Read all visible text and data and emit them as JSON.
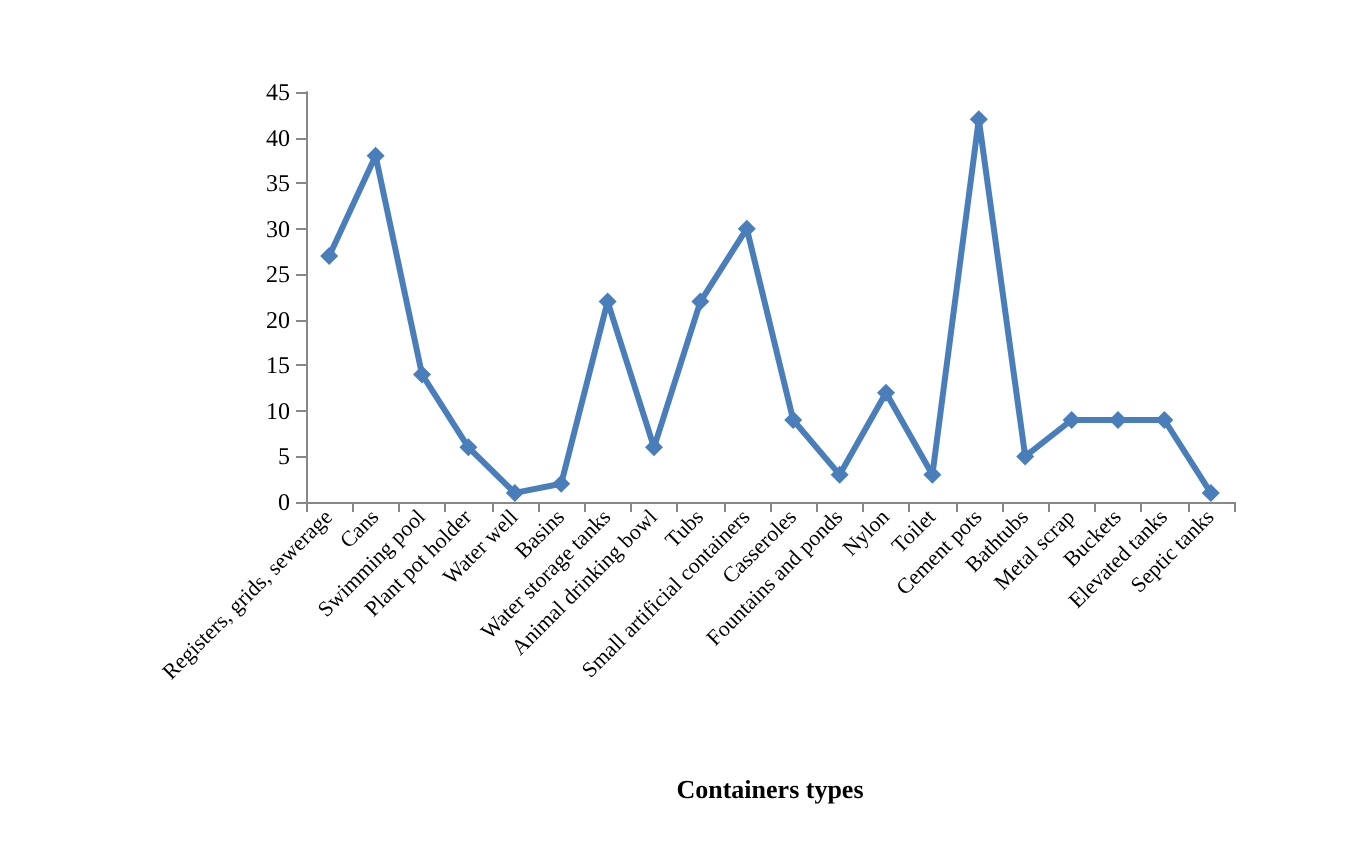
{
  "chart_data": {
    "type": "line",
    "xlabel": "Containers types",
    "categories": [
      "Registers, grids, sewerage",
      "Cans",
      "Swimming pool",
      "Plant pot holder",
      "Water well",
      "Basins",
      "Water storage tanks",
      "Animal drinking bowl",
      "Tubs",
      "Small artificial containers",
      "Casseroles",
      "Fountains and ponds",
      "Nylon",
      "Toilet",
      "Cement pots",
      "Bathtubs",
      "Metal scrap",
      "Buckets",
      "Elevated tanks",
      "Septic tanks"
    ],
    "series": [
      {
        "color": "#4a7ebb",
        "values": [
          27,
          38,
          14,
          6,
          1,
          2,
          22,
          6,
          22,
          30,
          9,
          3,
          12,
          3,
          42,
          5,
          9,
          9,
          9,
          1
        ]
      }
    ],
    "ylim": [
      0,
      45
    ],
    "yticks": [
      0,
      5,
      10,
      15,
      20,
      25,
      30,
      35,
      40,
      45
    ],
    "grid": false,
    "marker": "diamond",
    "line_style": "solid"
  }
}
